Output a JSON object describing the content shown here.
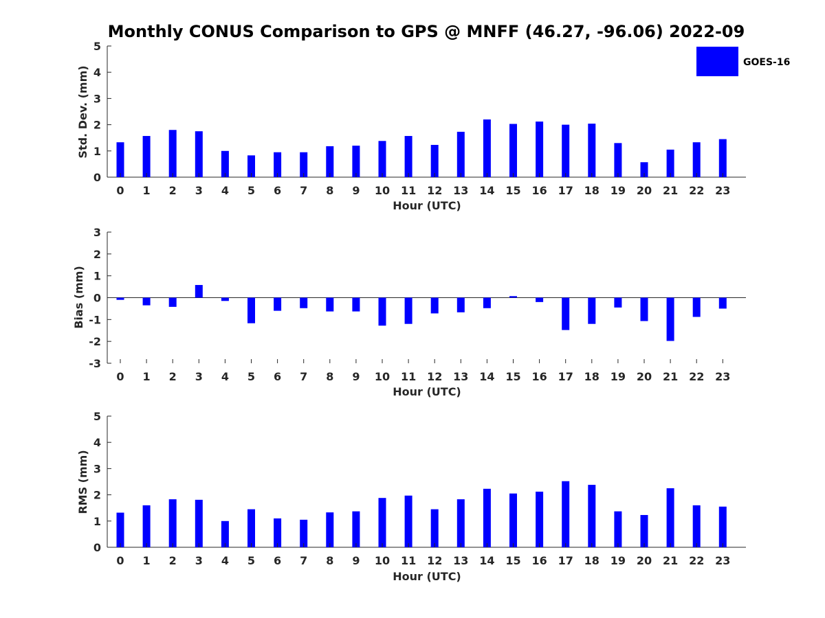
{
  "title": "Monthly CONUS Comparison to GPS @ MNFF (46.27, -96.06) 2022-09",
  "legend": {
    "label": "GOES-16",
    "color": "#0000ff"
  },
  "chart_data": [
    {
      "type": "bar",
      "title": "",
      "xlabel": "Hour (UTC)",
      "ylabel": "Std. Dev. (mm)",
      "ylim": [
        0,
        5
      ],
      "yticks": [
        0,
        1,
        2,
        3,
        4,
        5
      ],
      "categories": [
        "0",
        "1",
        "2",
        "3",
        "4",
        "5",
        "6",
        "7",
        "8",
        "9",
        "10",
        "11",
        "12",
        "13",
        "14",
        "15",
        "16",
        "17",
        "18",
        "19",
        "20",
        "21",
        "22",
        "23"
      ],
      "series": [
        {
          "name": "GOES-16",
          "color": "#0000ff",
          "values": [
            1.33,
            1.57,
            1.8,
            1.75,
            1.0,
            0.83,
            0.95,
            0.95,
            1.18,
            1.2,
            1.38,
            1.57,
            1.23,
            1.73,
            2.2,
            2.03,
            2.12,
            2.0,
            2.04,
            1.3,
            0.57,
            1.05,
            1.33,
            1.45
          ]
        }
      ]
    },
    {
      "type": "bar",
      "title": "",
      "xlabel": "Hour (UTC)",
      "ylabel": "Bias (mm)",
      "ylim": [
        -3,
        3
      ],
      "yticks": [
        -3,
        -2,
        -1,
        0,
        1,
        2,
        3
      ],
      "categories": [
        "0",
        "1",
        "2",
        "3",
        "4",
        "5",
        "6",
        "7",
        "8",
        "9",
        "10",
        "11",
        "12",
        "13",
        "14",
        "15",
        "16",
        "17",
        "18",
        "19",
        "20",
        "21",
        "22",
        "23"
      ],
      "series": [
        {
          "name": "GOES-16",
          "color": "#0000ff",
          "values": [
            -0.1,
            -0.35,
            -0.42,
            0.58,
            -0.15,
            -1.17,
            -0.6,
            -0.48,
            -0.63,
            -0.63,
            -1.28,
            -1.2,
            -0.72,
            -0.67,
            -0.48,
            0.07,
            -0.2,
            -1.48,
            -1.2,
            -0.45,
            -1.07,
            -1.98,
            -0.88,
            -0.5
          ]
        }
      ]
    },
    {
      "type": "bar",
      "title": "",
      "xlabel": "Hour (UTC)",
      "ylabel": "RMS (mm)",
      "ylim": [
        0,
        5
      ],
      "yticks": [
        0,
        1,
        2,
        3,
        4,
        5
      ],
      "categories": [
        "0",
        "1",
        "2",
        "3",
        "4",
        "5",
        "6",
        "7",
        "8",
        "9",
        "10",
        "11",
        "12",
        "13",
        "14",
        "15",
        "16",
        "17",
        "18",
        "19",
        "20",
        "21",
        "22",
        "23"
      ],
      "series": [
        {
          "name": "GOES-16",
          "color": "#0000ff",
          "values": [
            1.32,
            1.6,
            1.83,
            1.81,
            1.0,
            1.45,
            1.1,
            1.05,
            1.33,
            1.37,
            1.88,
            1.97,
            1.45,
            1.83,
            2.23,
            2.05,
            2.12,
            2.52,
            2.38,
            1.37,
            1.23,
            2.25,
            1.6,
            1.55
          ]
        }
      ]
    }
  ]
}
